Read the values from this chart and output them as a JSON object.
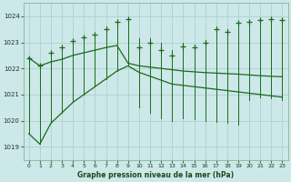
{
  "xlabel": "Graphe pression niveau de la mer (hPa)",
  "background_color": "#cce8e8",
  "grid_color": "#b0d0d0",
  "line_color": "#1a6b1a",
  "xlim": [
    -0.5,
    23.5
  ],
  "ylim": [
    1018.5,
    1024.5
  ],
  "yticks": [
    1019,
    1020,
    1021,
    1022,
    1023,
    1024
  ],
  "xticks": [
    0,
    1,
    2,
    3,
    4,
    5,
    6,
    7,
    8,
    9,
    10,
    11,
    12,
    13,
    14,
    15,
    16,
    17,
    18,
    19,
    20,
    21,
    22,
    23
  ],
  "hours": [
    0,
    1,
    2,
    3,
    4,
    5,
    6,
    7,
    8,
    9,
    10,
    11,
    12,
    13,
    14,
    15,
    16,
    17,
    18,
    19,
    20,
    21,
    22,
    23
  ],
  "pressure_marker": [
    1022.4,
    1022.1,
    1022.6,
    1022.8,
    1023.05,
    1023.2,
    1023.3,
    1023.5,
    1023.8,
    1023.9,
    1022.8,
    1023.0,
    1022.7,
    1022.5,
    1022.85,
    1022.8,
    1023.0,
    1023.5,
    1023.4,
    1023.75,
    1023.8,
    1023.85,
    1023.9,
    1023.85
  ],
  "spike_top": [
    1022.4,
    1022.1,
    1022.65,
    1022.85,
    1023.1,
    1023.25,
    1023.35,
    1023.6,
    1023.85,
    1023.95,
    1023.15,
    1023.15,
    1023.0,
    1022.7,
    1023.0,
    1022.9,
    1023.1,
    1023.6,
    1023.5,
    1023.8,
    1023.85,
    1023.9,
    1023.95,
    1023.9
  ],
  "spike_bot": [
    1019.5,
    1019.1,
    1019.9,
    1020.3,
    1020.7,
    1021.0,
    1021.3,
    1021.6,
    1021.9,
    1022.1,
    1020.5,
    1020.3,
    1020.1,
    1020.0,
    1020.1,
    1020.05,
    1020.0,
    1019.95,
    1019.9,
    1019.85,
    1020.8,
    1020.9,
    1020.85,
    1020.8
  ],
  "trend_lower": [
    1019.5,
    1019.1,
    1019.9,
    1020.3,
    1020.7,
    1021.0,
    1021.3,
    1021.6,
    1021.9,
    1022.1,
    1021.85,
    1021.7,
    1021.55,
    1021.4,
    1021.35,
    1021.3,
    1021.25,
    1021.2,
    1021.15,
    1021.1,
    1021.05,
    1021.0,
    1020.95,
    1020.9
  ],
  "trend_upper": [
    1022.4,
    1022.1,
    1022.25,
    1022.35,
    1022.5,
    1022.6,
    1022.7,
    1022.8,
    1022.88,
    1022.2,
    1022.1,
    1022.05,
    1022.0,
    1021.95,
    1021.9,
    1021.87,
    1021.84,
    1021.82,
    1021.8,
    1021.78,
    1021.75,
    1021.72,
    1021.7,
    1021.68
  ]
}
